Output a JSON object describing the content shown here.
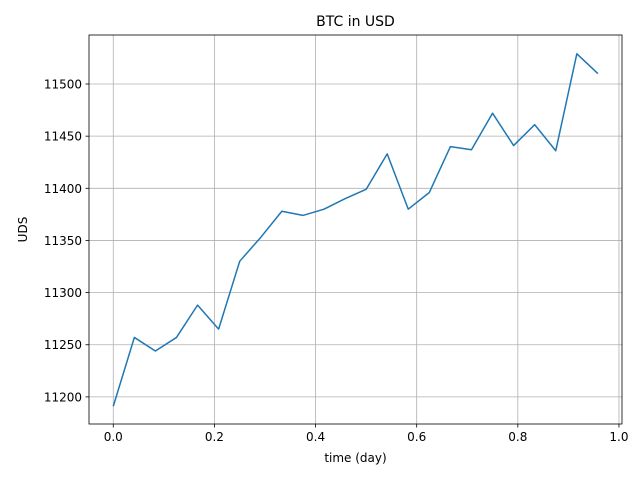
{
  "chart_data": {
    "type": "line",
    "title": "BTC in USD",
    "xlabel": "time (day)",
    "ylabel": "UDS",
    "xlim": [
      -0.048,
      1.006
    ],
    "ylim": [
      11174,
      11547
    ],
    "grid": true,
    "x_ticks": [
      0.0,
      0.2,
      0.4,
      0.6,
      0.8,
      1.0
    ],
    "x_tick_labels": [
      "0.0",
      "0.2",
      "0.4",
      "0.6",
      "0.8",
      "1.0"
    ],
    "y_ticks": [
      11200,
      11250,
      11300,
      11350,
      11400,
      11450,
      11500
    ],
    "y_tick_labels": [
      "11200",
      "11250",
      "11300",
      "11350",
      "11400",
      "11450",
      "11500"
    ],
    "line_color": "#1f77b4",
    "series": [
      {
        "x": [
          0.0,
          0.0417,
          0.0833,
          0.125,
          0.1667,
          0.2083,
          0.25,
          0.2917,
          0.3333,
          0.375,
          0.4167,
          0.4583,
          0.5,
          0.5417,
          0.5833,
          0.625,
          0.6667,
          0.7083,
          0.75,
          0.7917,
          0.8333,
          0.875,
          0.9167,
          0.9583
        ],
        "values": [
          11191,
          11257,
          11244,
          11257,
          11288,
          11265,
          11330,
          11353,
          11378,
          11374,
          11380,
          11390,
          11399,
          11433,
          11380,
          11396,
          11440,
          11437,
          11472,
          11441,
          11461,
          11436,
          11529,
          11510
        ]
      }
    ]
  }
}
